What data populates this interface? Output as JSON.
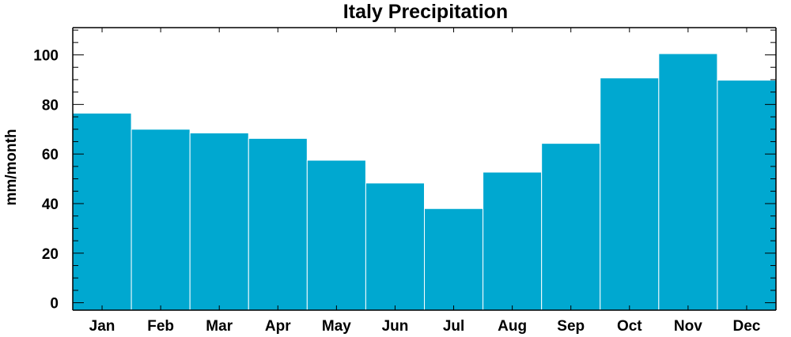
{
  "chart_data": {
    "type": "bar",
    "title": "Italy Precipitation",
    "xlabel": "",
    "ylabel": "mm/month",
    "categories": [
      "Jan",
      "Feb",
      "Mar",
      "Apr",
      "May",
      "Jun",
      "Jul",
      "Aug",
      "Sep",
      "Oct",
      "Nov",
      "Dec"
    ],
    "values": [
      76.5,
      70,
      68.5,
      66.3,
      57.5,
      48.3,
      38,
      52.7,
      64.3,
      90.7,
      100.5,
      89.8
    ],
    "ylim": [
      -3,
      111
    ],
    "yticks": [
      0,
      20,
      40,
      60,
      80,
      100
    ],
    "y_minor_step": 5,
    "grid": false,
    "legend": "none",
    "bar_color": "#00a8d0",
    "bar_edge_color": "#ffffff",
    "axis_color": "#000000"
  }
}
